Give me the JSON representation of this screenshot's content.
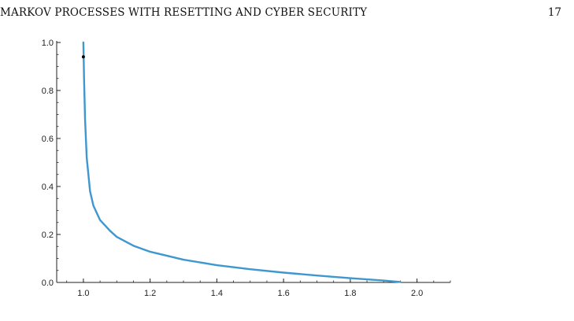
{
  "header": {
    "running_title": "MARKOV PROCESSES WITH RESETTING AND CYBER SECURITY",
    "page_number": "17"
  },
  "caption": {
    "text": ""
  },
  "colors": {
    "curve": "#3f97cf",
    "axis": "#222222",
    "marker": "#000000"
  },
  "chart_data": {
    "type": "line",
    "title": "",
    "xlabel": "",
    "ylabel": "",
    "xlim": [
      0.92,
      2.1
    ],
    "ylim": [
      0.0,
      1.0
    ],
    "x_ticks": [
      "1.0",
      "1.2",
      "1.4",
      "1.6",
      "1.8",
      "2.0"
    ],
    "y_ticks": [
      "0.0",
      "0.2",
      "0.4",
      "0.6",
      "0.8",
      "1.0"
    ],
    "grid": false,
    "series": [
      {
        "x": [
          1.0,
          1.002,
          1.005,
          1.01,
          1.02,
          1.03,
          1.05,
          1.08,
          1.1,
          1.15,
          1.2,
          1.3,
          1.4,
          1.5,
          1.6,
          1.7,
          1.8,
          1.9,
          1.95
        ],
        "y": [
          1.0,
          0.85,
          0.68,
          0.52,
          0.38,
          0.32,
          0.26,
          0.215,
          0.19,
          0.153,
          0.128,
          0.095,
          0.072,
          0.055,
          0.041,
          0.029,
          0.018,
          0.008,
          0.002
        ]
      }
    ],
    "points": [
      {
        "x": 1.0,
        "y": 0.94
      }
    ]
  }
}
